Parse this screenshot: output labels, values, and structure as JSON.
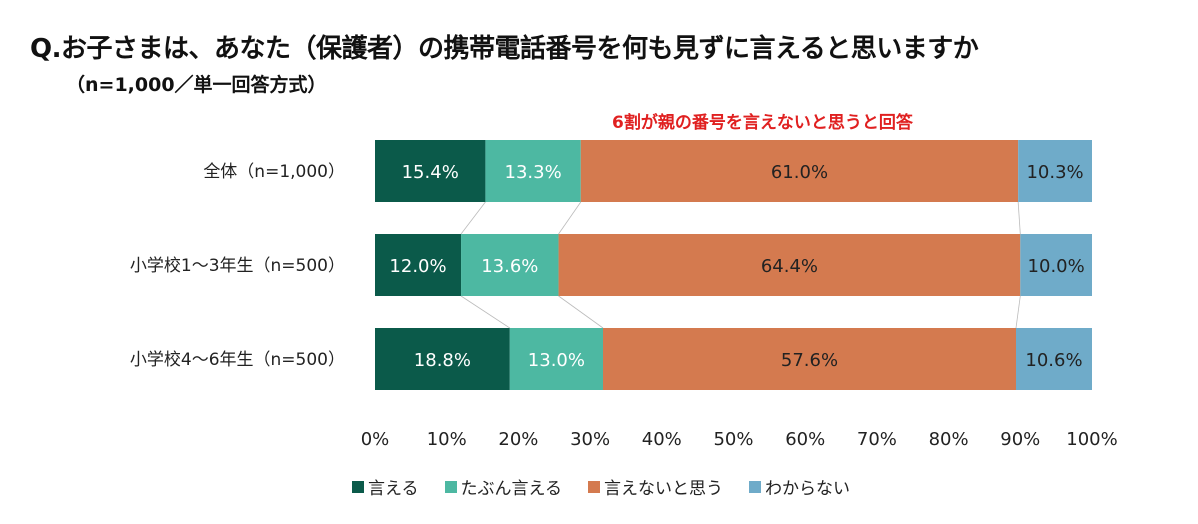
{
  "chart_data": {
    "type": "bar",
    "orientation": "horizontal",
    "stacked": true,
    "title": "Q.お子さまは、あなた（保護者）の携帯電話番号を何も見ずに言えると思いますか",
    "subtitle": "（n=1,000／単一回答方式）",
    "annotation": "6割が親の番号を言えないと思うと回答",
    "categories": [
      "全体（n=1,000）",
      "小学校1～3年生（n=500）",
      "小学校4～6年生（n=500）"
    ],
    "series": [
      {
        "name": "言える",
        "color": "#0b5a4a",
        "values": [
          15.4,
          12.0,
          18.8
        ]
      },
      {
        "name": "たぶん言える",
        "color": "#4db8a2",
        "values": [
          13.3,
          13.6,
          13.0
        ]
      },
      {
        "name": "言えないと思う",
        "color": "#d47a4f",
        "values": [
          61.0,
          64.4,
          57.6
        ]
      },
      {
        "name": "わからない",
        "color": "#6fabc9",
        "values": [
          10.3,
          10.0,
          10.6
        ]
      }
    ],
    "xlim": [
      0,
      100
    ],
    "xticks": [
      "0%",
      "10%",
      "20%",
      "30%",
      "40%",
      "50%",
      "60%",
      "70%",
      "80%",
      "90%",
      "100%"
    ],
    "grid": false,
    "legend_position": "bottom"
  }
}
